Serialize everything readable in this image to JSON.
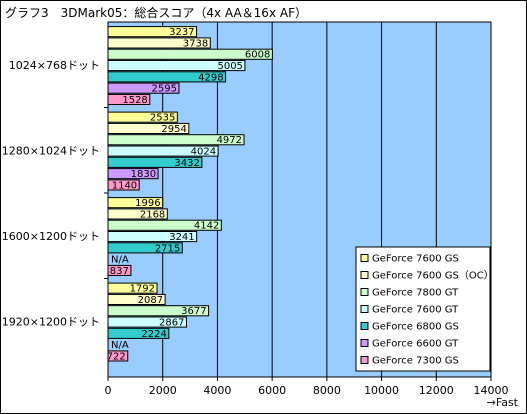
{
  "chart_data": {
    "type": "bar",
    "orientation": "horizontal",
    "title": "グラフ3　3DMark05：総合スコア（4x AA＆16x AF）",
    "xlabel": "→Fast",
    "xlim": [
      0,
      14000
    ],
    "xticks": [
      0,
      2000,
      4000,
      6000,
      8000,
      10000,
      12000,
      14000
    ],
    "grid": true,
    "legend_position": "bottom-right",
    "categories": [
      "1024×768ドット",
      "1280×1024ドット",
      "1600×1200ドット",
      "1920×1200ドット"
    ],
    "series": [
      {
        "name": "GeForce 7600 GS",
        "color": "#ffff99",
        "values": [
          3237,
          2535,
          1996,
          1792
        ],
        "labels": [
          "3237",
          "2535",
          "1996",
          "1792"
        ]
      },
      {
        "name": "GeForce 7600 GS（OC）",
        "color": "#ffffcc",
        "values": [
          3738,
          2954,
          2168,
          2087
        ],
        "labels": [
          "3738",
          "2954",
          "2168",
          "2087"
        ]
      },
      {
        "name": "GeForce 7800 GT",
        "color": "#ccffcc",
        "values": [
          6008,
          4972,
          4142,
          3677
        ],
        "labels": [
          "6008",
          "4972",
          "4142",
          "3677"
        ]
      },
      {
        "name": "GeForce 7600 GT",
        "color": "#ccffff",
        "values": [
          5005,
          4024,
          3241,
          2867
        ],
        "labels": [
          "5005",
          "4024",
          "3241",
          "2867"
        ]
      },
      {
        "name": "GeForce 6800 GS",
        "color": "#33cccc",
        "values": [
          4298,
          3432,
          2715,
          2224
        ],
        "labels": [
          "4298",
          "3432",
          "2715",
          "2224"
        ]
      },
      {
        "name": "GeForce 6600 GT",
        "color": "#cc99ff",
        "values": [
          2595,
          1830,
          null,
          null
        ],
        "labels": [
          "2595",
          "1830",
          "N/A",
          "N/A"
        ]
      },
      {
        "name": "GeForce 7300 GS",
        "color": "#ff99cc",
        "values": [
          1528,
          1140,
          837,
          722
        ],
        "labels": [
          "1528",
          "1140",
          "837",
          "722"
        ]
      }
    ]
  }
}
